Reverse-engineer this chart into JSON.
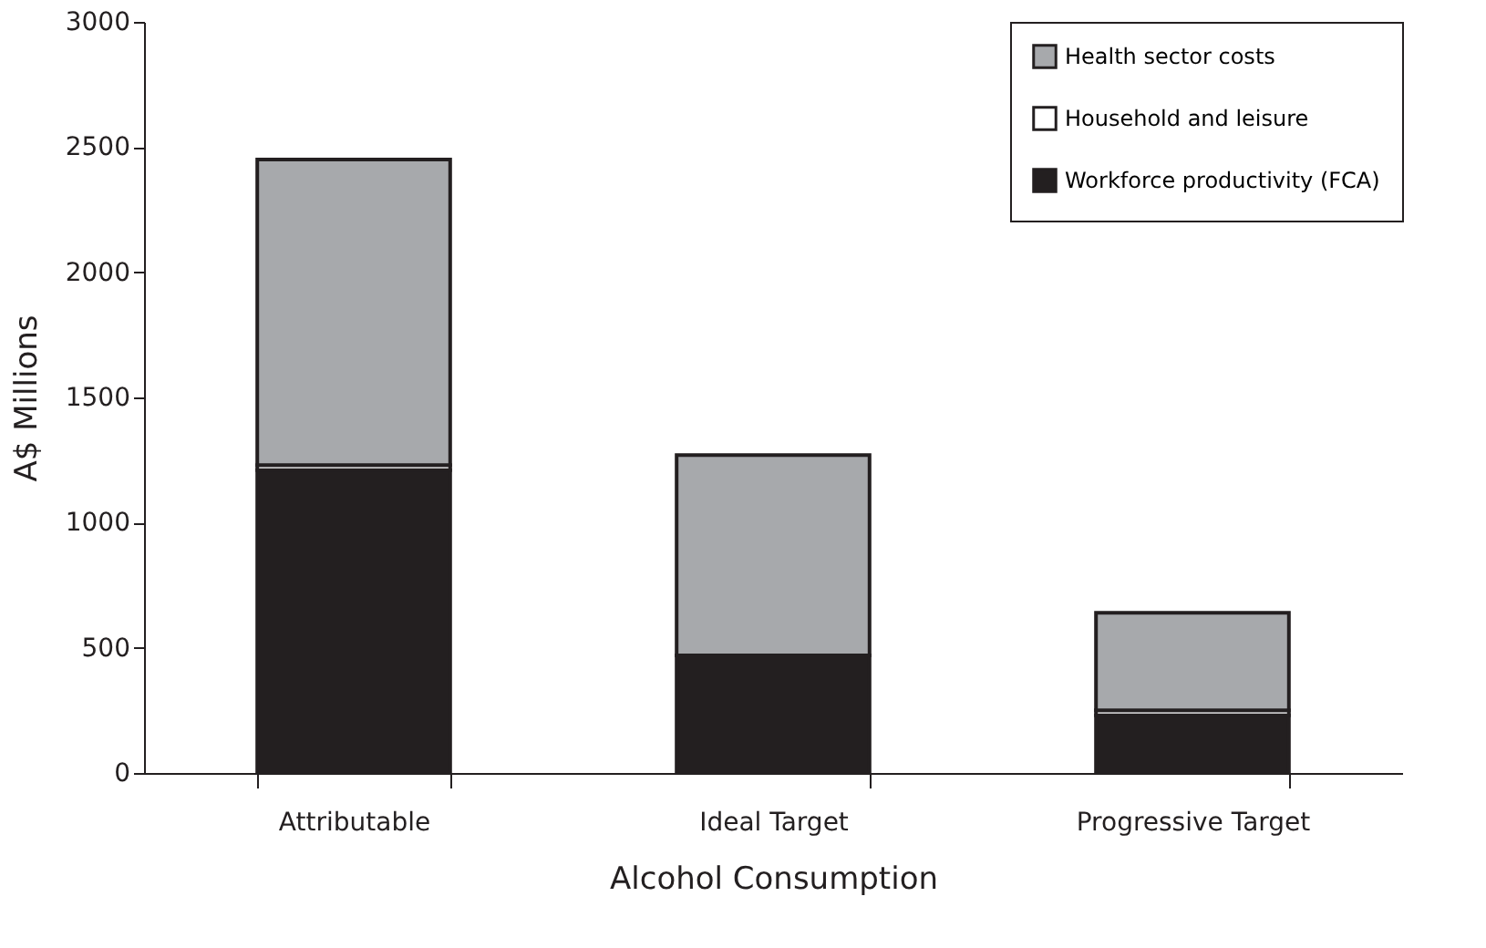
{
  "chart_data": {
    "type": "bar",
    "stacked": true,
    "xlabel": "Alcohol Consumption",
    "ylabel": "A$ Millions",
    "categories": [
      "Attributable",
      "Ideal Target",
      "Progressive Target"
    ],
    "series": [
      {
        "name": "Workforce productivity (FCA)",
        "color": "#231f20",
        "values": [
          1210,
          470,
          230
        ]
      },
      {
        "name": "Household and leisure",
        "color": "#ffffff",
        "values": [
          20,
          0,
          20
        ]
      },
      {
        "name": "Health sector costs",
        "color": "#a7a9ac",
        "values": [
          1220,
          800,
          390
        ]
      }
    ],
    "ylim": [
      0,
      3000
    ],
    "yticks": [
      0,
      500,
      1000,
      1500,
      2000,
      2500,
      3000
    ],
    "grid": false,
    "legend": "top right"
  }
}
